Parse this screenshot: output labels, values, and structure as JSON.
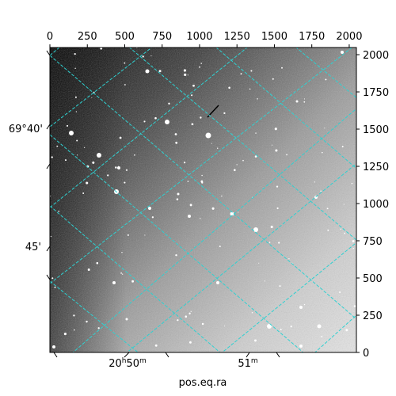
{
  "figure": {
    "xlabel": "pos.eq.ra",
    "colors": {
      "grid": "#2fd1d1",
      "frame": "#000000",
      "background": "#ffffff"
    }
  },
  "chart_data": {
    "type": "heatmap",
    "description_kind": "sky image with WCS grid overlay",
    "pixel_axes": {
      "x_ticks": [
        0,
        250,
        500,
        750,
        1000,
        1250,
        1500,
        1750,
        2000
      ],
      "y_ticks": [
        0,
        250,
        500,
        750,
        1000,
        1250,
        1500,
        1750,
        2000
      ],
      "xlim": [
        0,
        2048
      ],
      "ylim": [
        0,
        2048
      ]
    },
    "world_axes": {
      "ra_ticks": [
        {
          "main": "20",
          "sup1": "h",
          "mid": "50",
          "sup2": "m"
        },
        {
          "main": "51",
          "sup1": "",
          "mid": "",
          "sup2": "m"
        }
      ],
      "dec_ticks": [
        "69°40'",
        "45'"
      ]
    },
    "xlabel": "pos.eq.ra",
    "grid": true,
    "colormap": "gray"
  }
}
